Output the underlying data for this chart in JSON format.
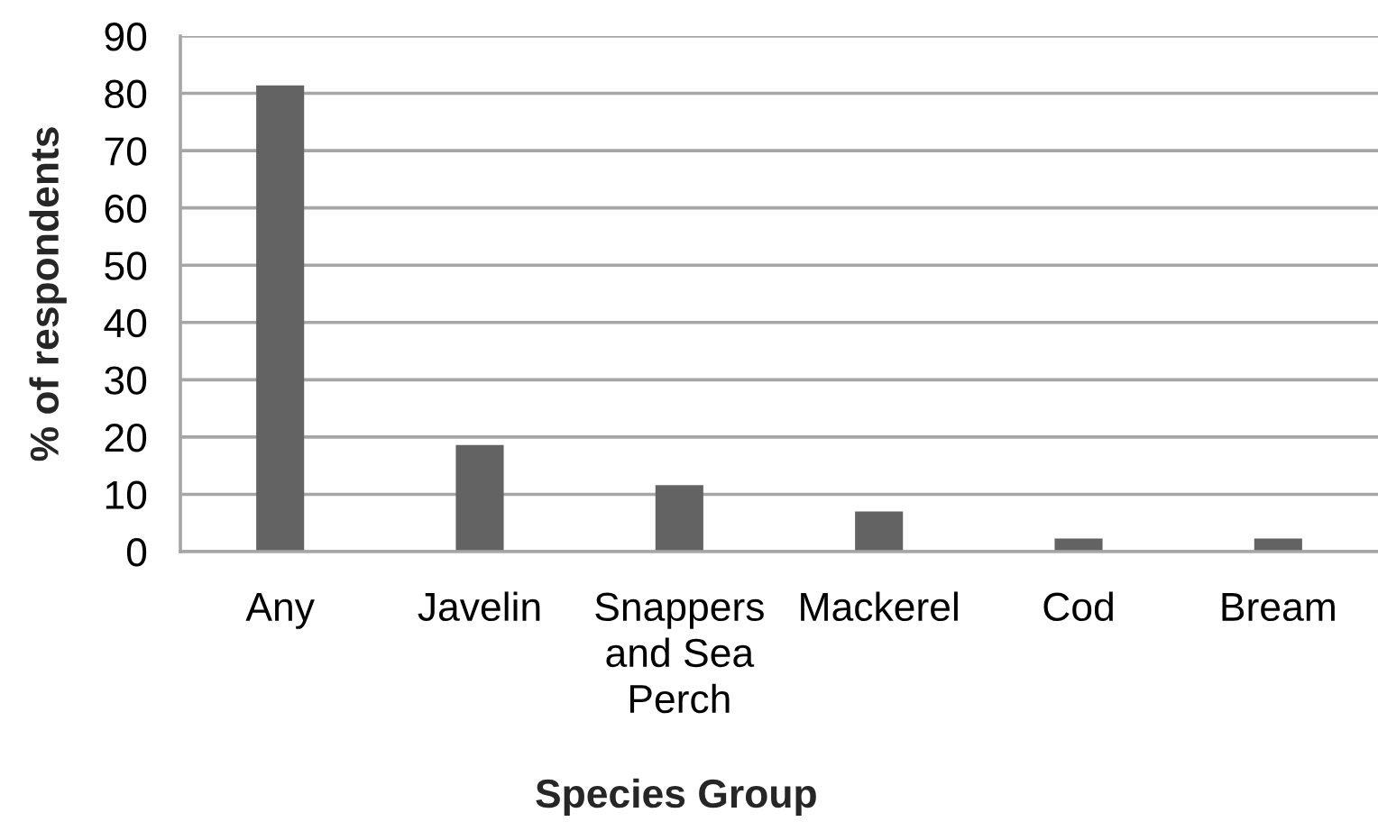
{
  "chart_data": {
    "type": "bar",
    "xlabel": "Species Group",
    "ylabel": "% of respondents",
    "categories": [
      "Any",
      "Javelin",
      "Snappers and Sea Perch",
      "Mackerel",
      "Cod",
      "Bream"
    ],
    "values": [
      81.4,
      18.6,
      11.6,
      7.0,
      2.3,
      2.3
    ],
    "color": "#636363",
    "ylim": [
      0,
      90
    ],
    "yticks": [
      0,
      10,
      20,
      30,
      40,
      50,
      60,
      70,
      80,
      90
    ],
    "grid": "y"
  }
}
